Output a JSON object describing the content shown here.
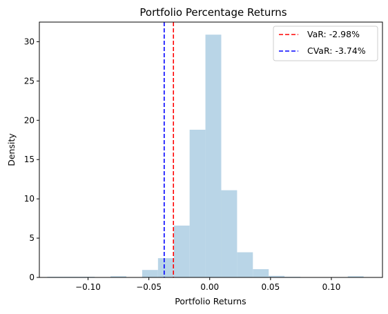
{
  "chart_data": {
    "type": "bar",
    "title": "Portfolio Percentage Returns",
    "xlabel": "Portfolio Returns",
    "ylabel": "Density",
    "xlim": [
      -0.14,
      0.142
    ],
    "ylim": [
      0,
      32.5
    ],
    "x_ticks": [
      -0.1,
      -0.05,
      0.0,
      0.05,
      0.1
    ],
    "x_tick_labels": [
      "−0.10",
      "−0.05",
      "0.00",
      "0.05",
      "0.10"
    ],
    "y_ticks": [
      0,
      5,
      10,
      15,
      20,
      25,
      30
    ],
    "y_tick_labels": [
      "0",
      "5",
      "10",
      "15",
      "20",
      "25",
      "30"
    ],
    "bin_edges": [
      -0.1335,
      -0.1205,
      -0.1075,
      -0.0945,
      -0.0815,
      -0.0685,
      -0.0555,
      -0.0425,
      -0.0295,
      -0.0165,
      -0.0035,
      0.0095,
      0.0225,
      0.0355,
      0.0485,
      0.0615,
      0.0745,
      0.0875,
      0.1005,
      0.1135,
      0.1265,
      0.1395
    ],
    "values": [
      0.08,
      0.08,
      0.08,
      0.0,
      0.15,
      0.0,
      0.95,
      2.45,
      6.6,
      18.8,
      30.9,
      11.1,
      3.2,
      1.05,
      0.2,
      0.08,
      0.0,
      0.0,
      0.0,
      0.15,
      0.0
    ],
    "bar_color": "#b9d5e7",
    "grid": false,
    "vlines": [
      {
        "name": "VaR: -2.98%",
        "x": -0.0298,
        "color": "#ff0000",
        "style": "dashed"
      },
      {
        "name": "CVaR: -3.74%",
        "x": -0.0374,
        "color": "#0000ff",
        "style": "dashed"
      }
    ],
    "legend_position": "top-right"
  }
}
